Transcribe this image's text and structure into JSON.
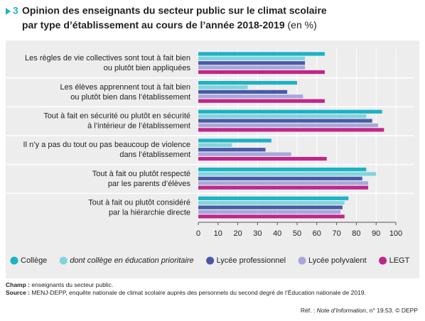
{
  "figure_number": "3",
  "chart_data": {
    "type": "hbar",
    "title": [
      "Opinion des enseignants du secteur public sur le climat scolaire",
      "par type d’établissement au cours de l’année 2018-2019"
    ],
    "units": "(en %)",
    "categories": [
      [
        "Les règles de vie collectives sont tout à fait bien",
        "ou plutôt bien appliquées"
      ],
      [
        "Les élèves apprennent tout à fait bien",
        "ou plutôt bien dans l’établissement"
      ],
      [
        "Tout à fait en sécurité ou plutôt en sécurité",
        "à l’intérieur de l’établissement"
      ],
      [
        "Il n’y a pas du tout ou pas beaucoup de violence",
        "dans l’établissement"
      ],
      [
        "Tout à fait ou plutôt respecté",
        "par les parents d’élèves"
      ],
      [
        "Tout à fait ou plutôt considéré",
        "par la hiérarchie directe"
      ]
    ],
    "series": [
      {
        "name": "Collège",
        "color": "#1ab3c4",
        "values": [
          64,
          50,
          93,
          37,
          85,
          76
        ]
      },
      {
        "name": "dont collège en éducation prioritaire",
        "color": "#80d4dd",
        "italic": true,
        "values": [
          54,
          25,
          85,
          17,
          90,
          74
        ]
      },
      {
        "name": "Lycée professionnel",
        "color": "#4a5aa8",
        "values": [
          54,
          45,
          88,
          34,
          83,
          73
        ]
      },
      {
        "name": "Lycée polyvalent",
        "color": "#a7a7d9",
        "values": [
          54,
          53,
          91,
          47,
          86,
          72
        ]
      },
      {
        "name": "LEGT",
        "color": "#c0268a",
        "values": [
          64,
          64,
          94,
          65,
          86,
          74
        ]
      }
    ],
    "xlim": [
      0,
      100
    ],
    "xticks": [
      0,
      10,
      20,
      30,
      40,
      50,
      60,
      70,
      80,
      90,
      100
    ],
    "grid": true
  },
  "notes": {
    "champ_label": "Champ :",
    "champ": "enseignants du secteur public.",
    "source_label": "Source :",
    "source": "MENJ-DEPP, enquête nationale de climat scolaire auprès des personnels du second degré de l’Éducation nationale de 2019.",
    "ref": [
      "Réf. : ",
      "Note d’Information",
      ", n° 19.53. © DEPP"
    ]
  }
}
